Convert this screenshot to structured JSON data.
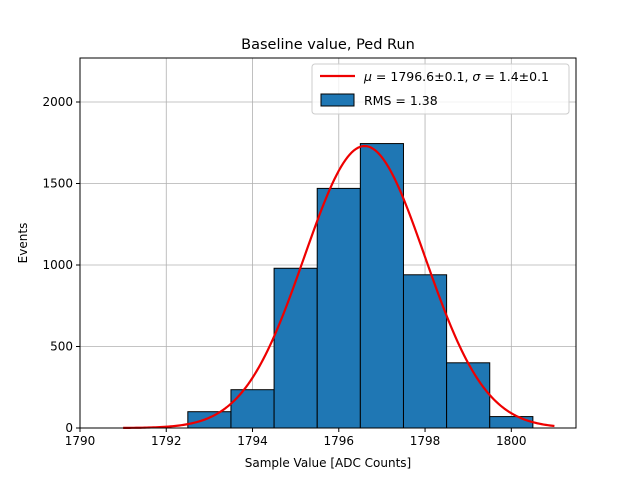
{
  "chart_data": {
    "type": "bar",
    "title": "Baseline value, Ped Run",
    "xlabel": "Sample Value [ADC Counts]",
    "ylabel": "Events",
    "xlim": [
      1790,
      1801.5
    ],
    "ylim": [
      0,
      2270
    ],
    "xticks": [
      1790,
      1792,
      1794,
      1796,
      1798,
      1800
    ],
    "yticks": [
      0,
      500,
      1000,
      1500,
      2000
    ],
    "grid": true,
    "legend_position": "top-right",
    "histogram": {
      "name": "RMS = 1.38",
      "bin_width": 1,
      "bins": [
        {
          "left": 1792.5,
          "value": 100
        },
        {
          "left": 1793.5,
          "value": 235
        },
        {
          "left": 1794.5,
          "value": 980
        },
        {
          "left": 1795.5,
          "value": 1470
        },
        {
          "left": 1796.5,
          "value": 1745
        },
        {
          "left": 1797.5,
          "value": 940
        },
        {
          "left": 1798.5,
          "value": 400
        },
        {
          "left": 1799.5,
          "value": 70
        }
      ],
      "color": "#1f77b4"
    },
    "fit": {
      "name": "μ = 1796.6±0.1, σ = 1.4±0.1",
      "mu": 1796.6,
      "sigma": 1.4,
      "amplitude": 1730,
      "x_range": [
        1791,
        1801
      ],
      "color": "#ee0000"
    },
    "legend_fit_label": {
      "mu_symbol": "μ",
      "mu_text": " = 1796.6±0.1, ",
      "sigma_symbol": "σ",
      "sigma_text": " = 1.4±0.1"
    }
  }
}
